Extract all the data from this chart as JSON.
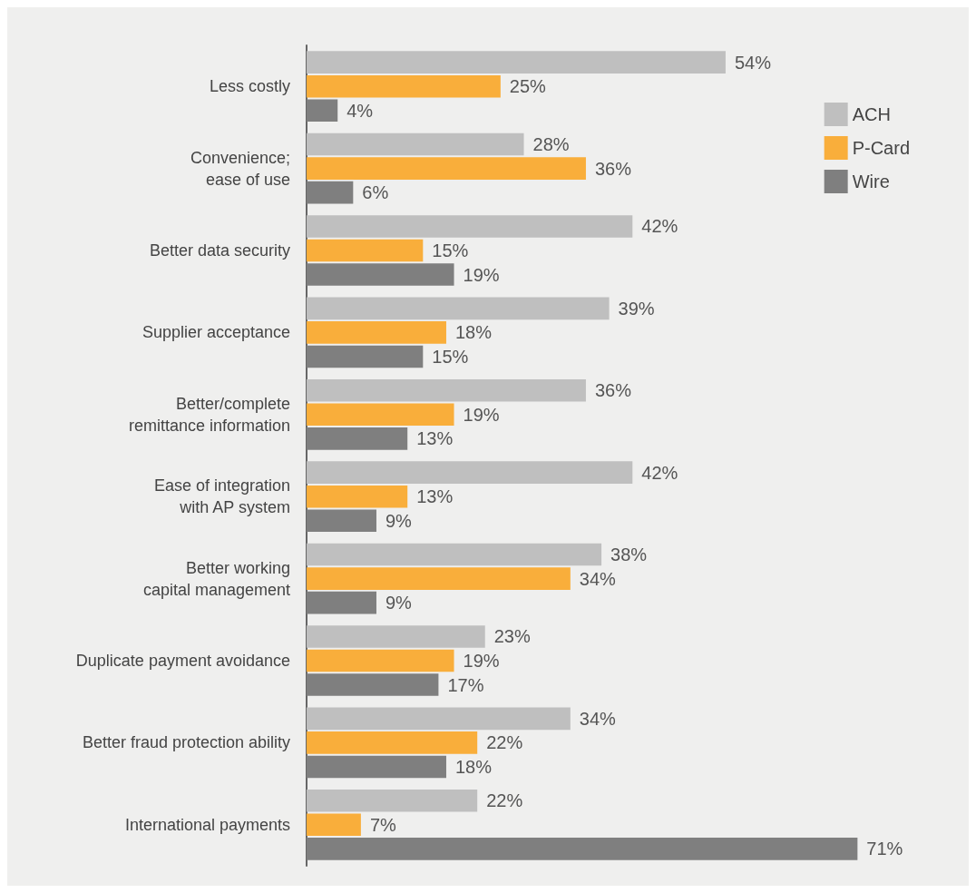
{
  "chart_data": {
    "type": "bar",
    "orientation": "horizontal",
    "tick_labels": "y",
    "legend": "top right",
    "categories": [
      "Less costly",
      "Convenience;\nease of use",
      "Better data security",
      "Supplier acceptance",
      "Better/complete\nremittance information",
      "Ease of integration\nwith AP system",
      "Better working\ncapital management",
      "Duplicate payment avoidance",
      "Better fraud protection ability",
      "International payments"
    ],
    "series": [
      {
        "name": "ACH",
        "color": "#bfbfbf",
        "values": [
          54,
          28,
          42,
          39,
          36,
          42,
          38,
          23,
          34,
          22
        ],
        "value_labels": [
          "54%",
          "28%",
          "42%",
          "39%",
          "36%",
          "42%",
          "38%",
          "23%",
          "34%",
          "22%"
        ]
      },
      {
        "name": "P-Card",
        "color": "#f9ae3b",
        "values": [
          25,
          36,
          15,
          18,
          19,
          13,
          34,
          19,
          22,
          7
        ],
        "value_labels": [
          "25%",
          "36%",
          "15%",
          "18%",
          "19%",
          "13%",
          "34%",
          "19%",
          "22%",
          "7%"
        ]
      },
      {
        "name": "Wire",
        "color": "#7f7f7f",
        "values": [
          4,
          6,
          19,
          15,
          13,
          9,
          9,
          17,
          18,
          71
        ],
        "value_labels": [
          "4%",
          "6%",
          "19%",
          "15%",
          "13%",
          "9%",
          "9%",
          "17%",
          "18%",
          "71%"
        ]
      }
    ]
  }
}
